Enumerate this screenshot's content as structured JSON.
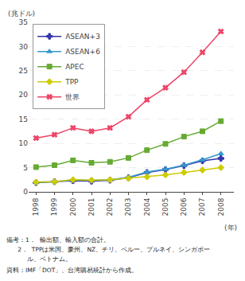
{
  "chart_data": {
    "type": "line",
    "x": [
      1998,
      1999,
      2000,
      2001,
      2002,
      2003,
      2004,
      2005,
      2006,
      2007,
      2008
    ],
    "xlim": [
      1997.6,
      2008.7
    ],
    "xticks": [
      1998,
      1999,
      2000,
      2001,
      2002,
      2003,
      2004,
      2005,
      2006,
      2007,
      2008
    ],
    "ylim": [
      0,
      35
    ],
    "yticks": [
      0,
      5,
      10,
      15,
      20,
      25,
      30,
      35
    ],
    "grid": true,
    "legend": "upper left",
    "y_label": "(兆ドル)",
    "x_label": "(年)",
    "annotations": [
      "備考：1．  輸出額、輸入額の合計。",
      "      2．  TPPは米国、豪州、NZ、チリ、ペルー、ブルネイ、シンガポー",
      "           ル、ベトナム。",
      "資料：IMF「DOT」、台湾購易統計から作成。"
    ],
    "series": [
      {
        "name": "ASEAN+3",
        "color": "#3333aa",
        "marker": "cross",
        "values": [
          1.9,
          2.1,
          2.3,
          2.2,
          2.4,
          2.9,
          4.0,
          4.6,
          5.4,
          6.4,
          6.9
        ]
      },
      {
        "name": "ASEAN+6",
        "color": "#3399cc",
        "marker": "triangle-up",
        "values": [
          2.0,
          2.1,
          2.5,
          2.4,
          2.5,
          3.0,
          4.1,
          4.7,
          5.5,
          6.6,
          7.9
        ]
      },
      {
        "name": "APEC",
        "color": "#66aa33",
        "marker": "square",
        "values": [
          5.1,
          5.5,
          6.5,
          6.0,
          6.2,
          7.0,
          8.6,
          9.9,
          11.4,
          12.5,
          14.6
        ]
      },
      {
        "name": "TPP",
        "color": "#cccc00",
        "marker": "diamond",
        "values": [
          2.0,
          2.1,
          2.5,
          2.4,
          2.5,
          2.8,
          3.1,
          3.5,
          4.0,
          4.5,
          5.0
        ]
      },
      {
        "name": "世界",
        "color": "#ee4466",
        "marker": "x",
        "values": [
          11.1,
          11.8,
          13.2,
          12.5,
          13.2,
          15.5,
          19.0,
          21.5,
          24.7,
          28.8,
          33.1
        ]
      }
    ]
  }
}
